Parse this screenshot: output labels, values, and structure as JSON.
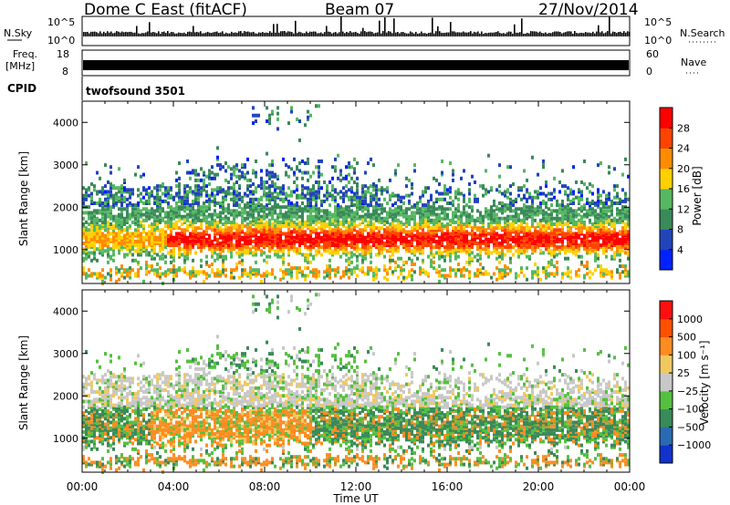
{
  "header": {
    "station": "Dome C East (fitACF)",
    "beam": "Beam 07",
    "date": "27/Nov/2014"
  },
  "strips": {
    "nsky_label": "N.Sky",
    "nsky_ticks": [
      "10^5",
      "10^0"
    ],
    "nsearch_label": "N.Search",
    "freq_label_1": "Freq.",
    "freq_label_2": "[MHz]",
    "freq_ticks": [
      "18",
      "8"
    ],
    "nave_label": "Nave",
    "nave_ticks": [
      "60",
      "0"
    ],
    "cpid_label": "CPID",
    "cpid_value": "twofsound 3501"
  },
  "chart_data": [
    {
      "type": "heatmap",
      "name": "power",
      "xlabel": "Time UT",
      "ylabel": "Slant Range [km]",
      "x_ticks": [
        "00:00",
        "04:00",
        "08:00",
        "12:00",
        "16:00",
        "20:00",
        "00:00"
      ],
      "y_ticks": [
        1000,
        2000,
        3000,
        4000
      ],
      "ylim": [
        200,
        4500
      ],
      "colorbar": {
        "label": "Power [dB]",
        "ticks": [
          "28",
          "24",
          "20",
          "16",
          "12",
          "8",
          "4"
        ],
        "colors": [
          "#0022ff",
          "#2244bb",
          "#3a8a5a",
          "#55b860",
          "#ffd000",
          "#ff8c00",
          "#ff4400",
          "#ff0000"
        ]
      }
    },
    {
      "type": "heatmap",
      "name": "velocity",
      "xlabel": "Time UT",
      "ylabel": "Slant Range [km]",
      "x_ticks": [
        "00:00",
        "04:00",
        "08:00",
        "12:00",
        "16:00",
        "20:00",
        "00:00"
      ],
      "y_ticks": [
        1000,
        2000,
        3000,
        4000
      ],
      "ylim": [
        200,
        4500
      ],
      "colorbar": {
        "label": "Velocity [m s⁻¹]",
        "ticks": [
          "1000",
          "500",
          "100",
          "25",
          "−25",
          "−100",
          "−500",
          "−1000"
        ],
        "colors": [
          "#1133cc",
          "#2a6ab0",
          "#3a8a5a",
          "#55c040",
          "#c8c8c8",
          "#f0c860",
          "#ff8c20",
          "#ff5000",
          "#ff1010"
        ]
      }
    }
  ],
  "time_label": "Time UT"
}
